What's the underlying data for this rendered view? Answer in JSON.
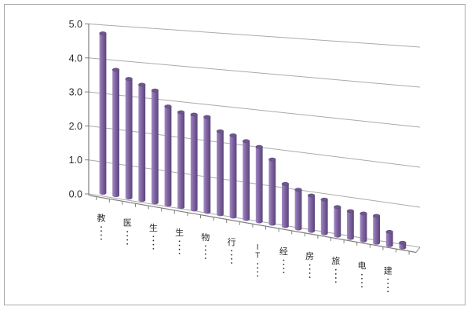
{
  "window": {
    "background_color": "#FFFFFF",
    "frame_border_color": "#A9A9A9"
  },
  "chart_data": {
    "type": "bar",
    "style": "3d-cylinder-perspective",
    "title": "",
    "xlabel": "",
    "ylabel": "",
    "legend": "none",
    "grid": "on",
    "ylim": [
      0,
      5
    ],
    "yticks": [
      "5.0",
      "4.0",
      "3.0",
      "2.0",
      "1.0",
      "0.0"
    ],
    "values": [
      4.7,
      3.7,
      3.5,
      3.4,
      3.3,
      2.9,
      2.8,
      2.8,
      2.8,
      2.45,
      2.4,
      2.3,
      2.2,
      1.9,
      1.25,
      1.15,
      1.05,
      1.0,
      0.85,
      0.8,
      0.8,
      0.8,
      0.4,
      0.15
    ],
    "bar_count": 24,
    "categories_visible": [
      "教",
      "医",
      "生",
      "生",
      "物",
      "行",
      "IT",
      "经",
      "房",
      "旅",
      "电",
      "建"
    ],
    "label_every_n_bars": 2,
    "labels_truncated": true,
    "truncation_marker": "vertical-ellipsis-dots",
    "colors": {
      "bar_fill": "#8064A2",
      "bar_fill_light": "#A18BC4",
      "bar_fill_dark": "#5A4578",
      "bar_cap": "#6E578F",
      "gridline": "#AAAAAA",
      "axis": "#808080",
      "text": "#2B2B2B"
    }
  }
}
